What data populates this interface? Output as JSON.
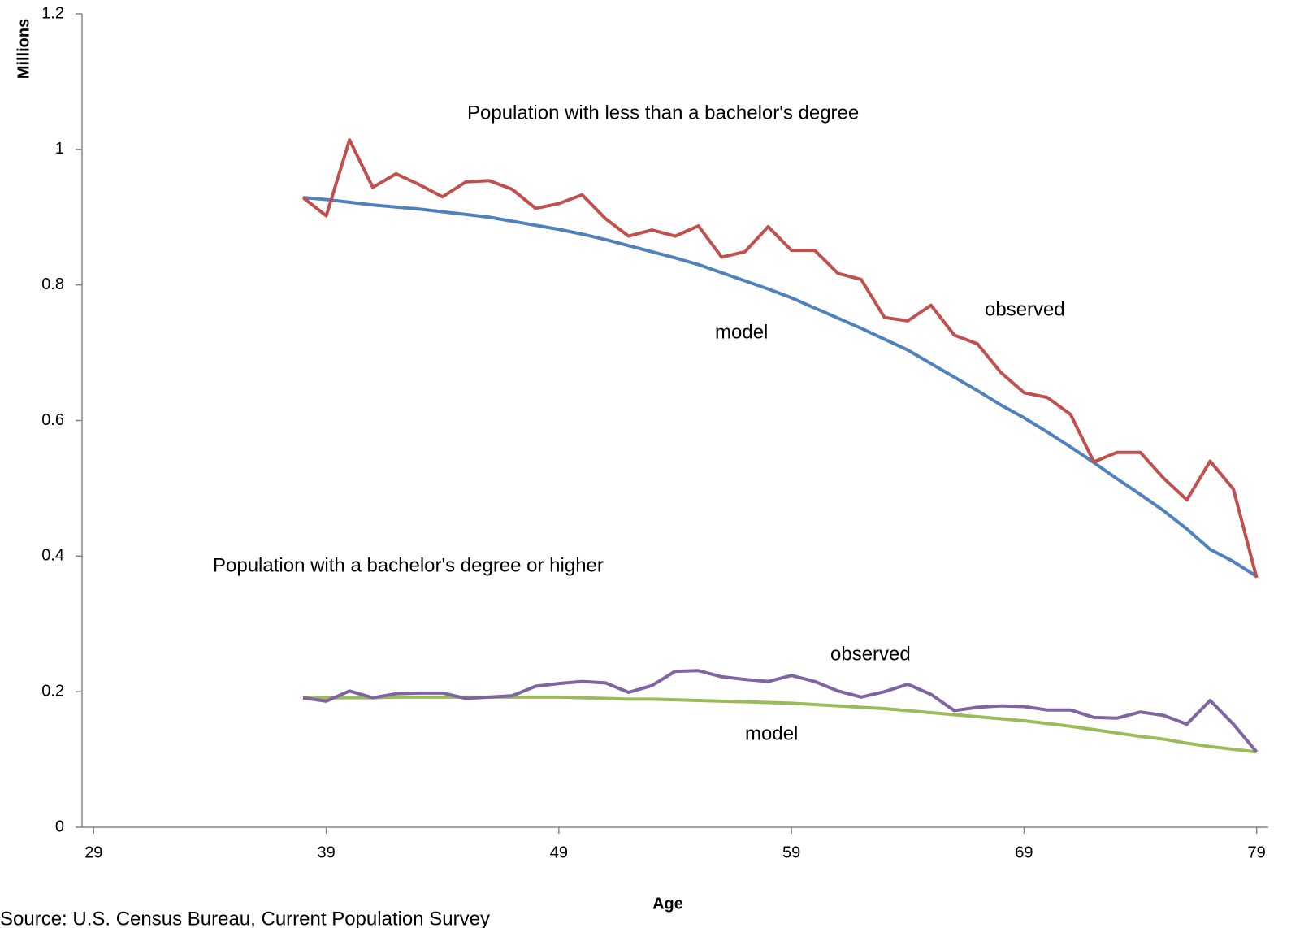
{
  "chart_data": {
    "type": "line",
    "x_label": "Age",
    "y_label": "Millions",
    "source": "Source: U.S. Census Bureau, Current Population Survey",
    "annotations": [
      "Population with less  than a bachelor's degree",
      "observed",
      "model",
      "Population with a bachelor's degree or higher",
      "observed",
      "model"
    ],
    "x": [
      38,
      39,
      40,
      41,
      42,
      43,
      44,
      45,
      46,
      47,
      48,
      49,
      50,
      51,
      52,
      53,
      54,
      55,
      56,
      57,
      58,
      59,
      60,
      61,
      62,
      63,
      64,
      65,
      66,
      67,
      68,
      69,
      70,
      71,
      72,
      73,
      74,
      75,
      76,
      77,
      78,
      79
    ],
    "series": [
      {
        "color": "#4f81bd",
        "values": [
          0.929,
          0.926,
          0.922,
          0.918,
          0.915,
          0.912,
          0.908,
          0.904,
          0.9,
          0.894,
          0.888,
          0.882,
          0.875,
          0.867,
          0.858,
          0.849,
          0.84,
          0.83,
          0.818,
          0.806,
          0.794,
          0.781,
          0.766,
          0.751,
          0.736,
          0.72,
          0.704,
          0.684,
          0.664,
          0.644,
          0.623,
          0.604,
          0.583,
          0.561,
          0.538,
          0.514,
          0.491,
          0.467,
          0.44,
          0.41,
          0.392,
          0.37
        ]
      },
      {
        "color": "#c0504d",
        "values": [
          0.929,
          0.902,
          1.014,
          0.944,
          0.964,
          0.948,
          0.93,
          0.952,
          0.954,
          0.941,
          0.913,
          0.92,
          0.933,
          0.898,
          0.872,
          0.881,
          0.872,
          0.887,
          0.841,
          0.849,
          0.886,
          0.851,
          0.851,
          0.817,
          0.808,
          0.752,
          0.747,
          0.77,
          0.726,
          0.713,
          0.671,
          0.641,
          0.634,
          0.609,
          0.539,
          0.553,
          0.553,
          0.515,
          0.483,
          0.54,
          0.499,
          0.368
        ]
      },
      {
        "color": "#9bbb59",
        "values": [
          0.191,
          0.191,
          0.191,
          0.191,
          0.192,
          0.192,
          0.192,
          0.192,
          0.192,
          0.192,
          0.192,
          0.192,
          0.191,
          0.19,
          0.189,
          0.189,
          0.188,
          0.187,
          0.186,
          0.185,
          0.184,
          0.183,
          0.181,
          0.179,
          0.177,
          0.175,
          0.172,
          0.169,
          0.166,
          0.163,
          0.16,
          0.157,
          0.153,
          0.149,
          0.144,
          0.139,
          0.134,
          0.13,
          0.124,
          0.119,
          0.115,
          0.111
        ]
      },
      {
        "color": "#8064a2",
        "values": [
          0.191,
          0.186,
          0.201,
          0.191,
          0.197,
          0.198,
          0.198,
          0.19,
          0.192,
          0.194,
          0.208,
          0.212,
          0.215,
          0.213,
          0.199,
          0.209,
          0.23,
          0.231,
          0.222,
          0.218,
          0.215,
          0.224,
          0.215,
          0.201,
          0.192,
          0.2,
          0.211,
          0.196,
          0.172,
          0.177,
          0.179,
          0.178,
          0.173,
          0.173,
          0.162,
          0.161,
          0.17,
          0.165,
          0.152,
          0.187,
          0.152,
          0.111
        ]
      }
    ],
    "xlim": [
      28.5,
      79.5
    ],
    "xticks": [
      29,
      39,
      49,
      59,
      69,
      79
    ],
    "ylim": [
      0,
      1.2
    ],
    "yticks": [
      0,
      0.2,
      0.4,
      0.6,
      0.8,
      1,
      1.2
    ],
    "grid": false
  }
}
